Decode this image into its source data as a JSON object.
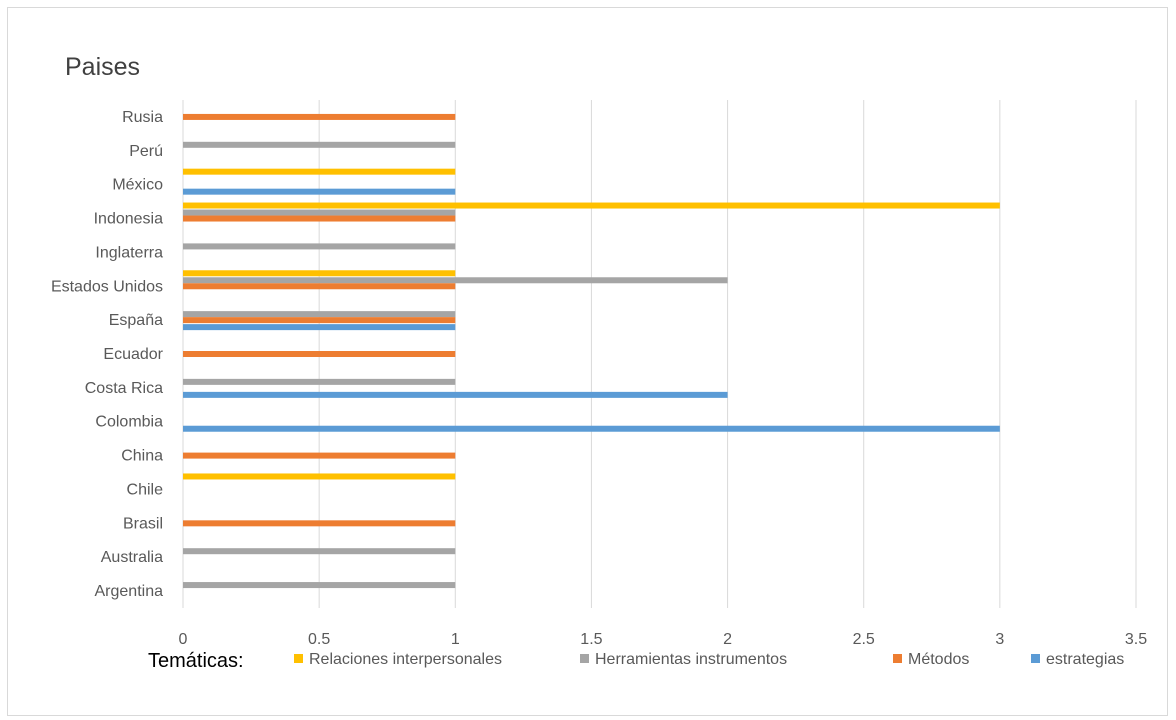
{
  "chart_data": {
    "type": "bar",
    "orientation": "horizontal",
    "title": "Paises",
    "categories": [
      "Argentina",
      "Australia",
      "Brasil",
      "Chile",
      "China",
      "Colombia",
      "Costa Rica",
      "Ecuador",
      "España",
      "Estados Unidos",
      "Inglaterra",
      "Indonesia",
      "México",
      "Perú",
      "Rusia"
    ],
    "series": [
      {
        "name": "Relaciones interpersonales",
        "color": "#FFC000",
        "values": [
          null,
          null,
          null,
          1,
          null,
          null,
          null,
          null,
          null,
          1,
          null,
          3,
          1,
          null,
          null
        ]
      },
      {
        "name": "Herramientas instrumentos",
        "color": "#A5A5A5",
        "values": [
          1,
          1,
          null,
          null,
          null,
          null,
          1,
          null,
          1,
          2,
          1,
          1,
          null,
          1,
          null
        ]
      },
      {
        "name": "Métodos",
        "color": "#ED7D31",
        "values": [
          null,
          null,
          1,
          null,
          1,
          null,
          null,
          1,
          1,
          1,
          null,
          1,
          null,
          null,
          1
        ]
      },
      {
        "name": "estrategias",
        "color": "#5B9BD5",
        "values": [
          null,
          null,
          null,
          null,
          null,
          3,
          2,
          null,
          1,
          null,
          null,
          null,
          1,
          null,
          null
        ]
      }
    ],
    "xlim": [
      0,
      3.5
    ],
    "xticks": [
      "0",
      "0.5",
      "1",
      "1.5",
      "2",
      "2.5",
      "3",
      "3.5"
    ],
    "grid": true,
    "legend": {
      "title": "Temáticas:",
      "position": "bottom"
    }
  }
}
